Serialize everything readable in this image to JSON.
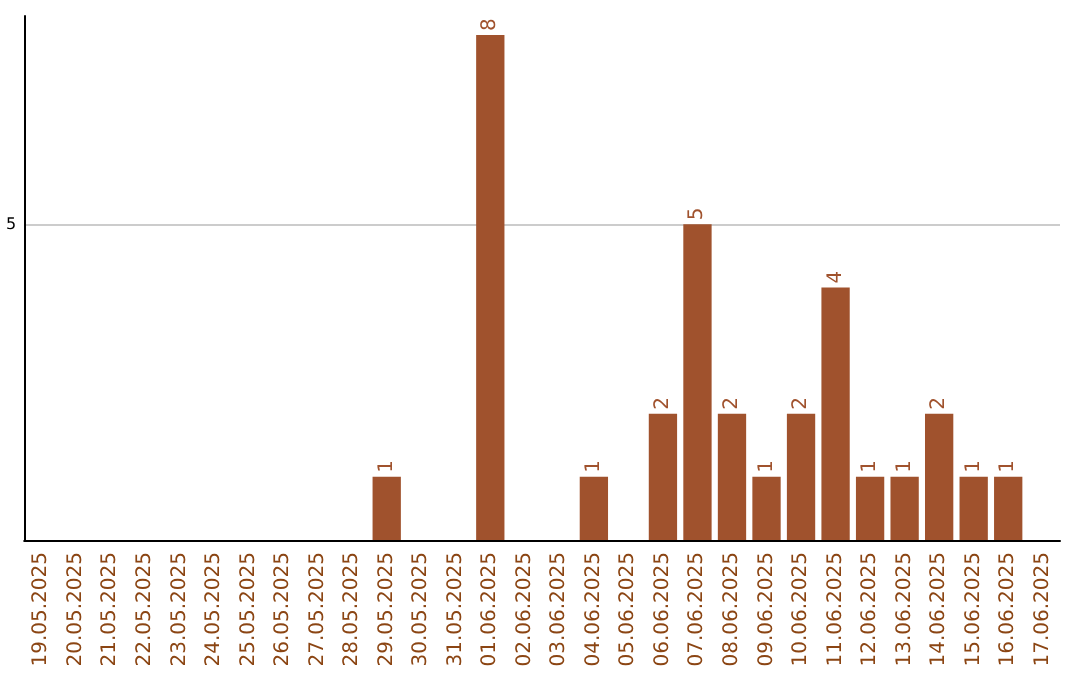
{
  "chart_data": {
    "type": "bar",
    "categories": [
      "19.05.2025",
      "20.05.2025",
      "21.05.2025",
      "22.05.2025",
      "23.05.2025",
      "24.05.2025",
      "25.05.2025",
      "26.05.2025",
      "27.05.2025",
      "28.05.2025",
      "29.05.2025",
      "30.05.2025",
      "31.05.2025",
      "01.06.2025",
      "02.06.2025",
      "03.06.2025",
      "04.06.2025",
      "05.06.2025",
      "06.06.2025",
      "07.06.2025",
      "08.06.2025",
      "09.06.2025",
      "10.06.2025",
      "11.06.2025",
      "12.06.2025",
      "13.06.2025",
      "14.06.2025",
      "15.06.2025",
      "16.06.2025",
      "17.06.2025"
    ],
    "values": [
      0,
      0,
      0,
      0,
      0,
      0,
      0,
      0,
      0,
      0,
      1,
      0,
      0,
      8,
      0,
      0,
      1,
      0,
      2,
      5,
      2,
      1,
      2,
      4,
      1,
      1,
      2,
      1,
      1,
      0
    ],
    "value_labels": [
      null,
      null,
      null,
      null,
      null,
      null,
      null,
      null,
      null,
      null,
      "1",
      null,
      null,
      "8",
      null,
      null,
      "1",
      null,
      "2",
      "5",
      "2",
      "1",
      "2",
      "4",
      "1",
      "1",
      "2",
      "1",
      "1",
      null
    ],
    "color": "#a0522d",
    "ylim": [
      0,
      8.3
    ],
    "yticks": [
      5
    ],
    "grid": "y"
  }
}
